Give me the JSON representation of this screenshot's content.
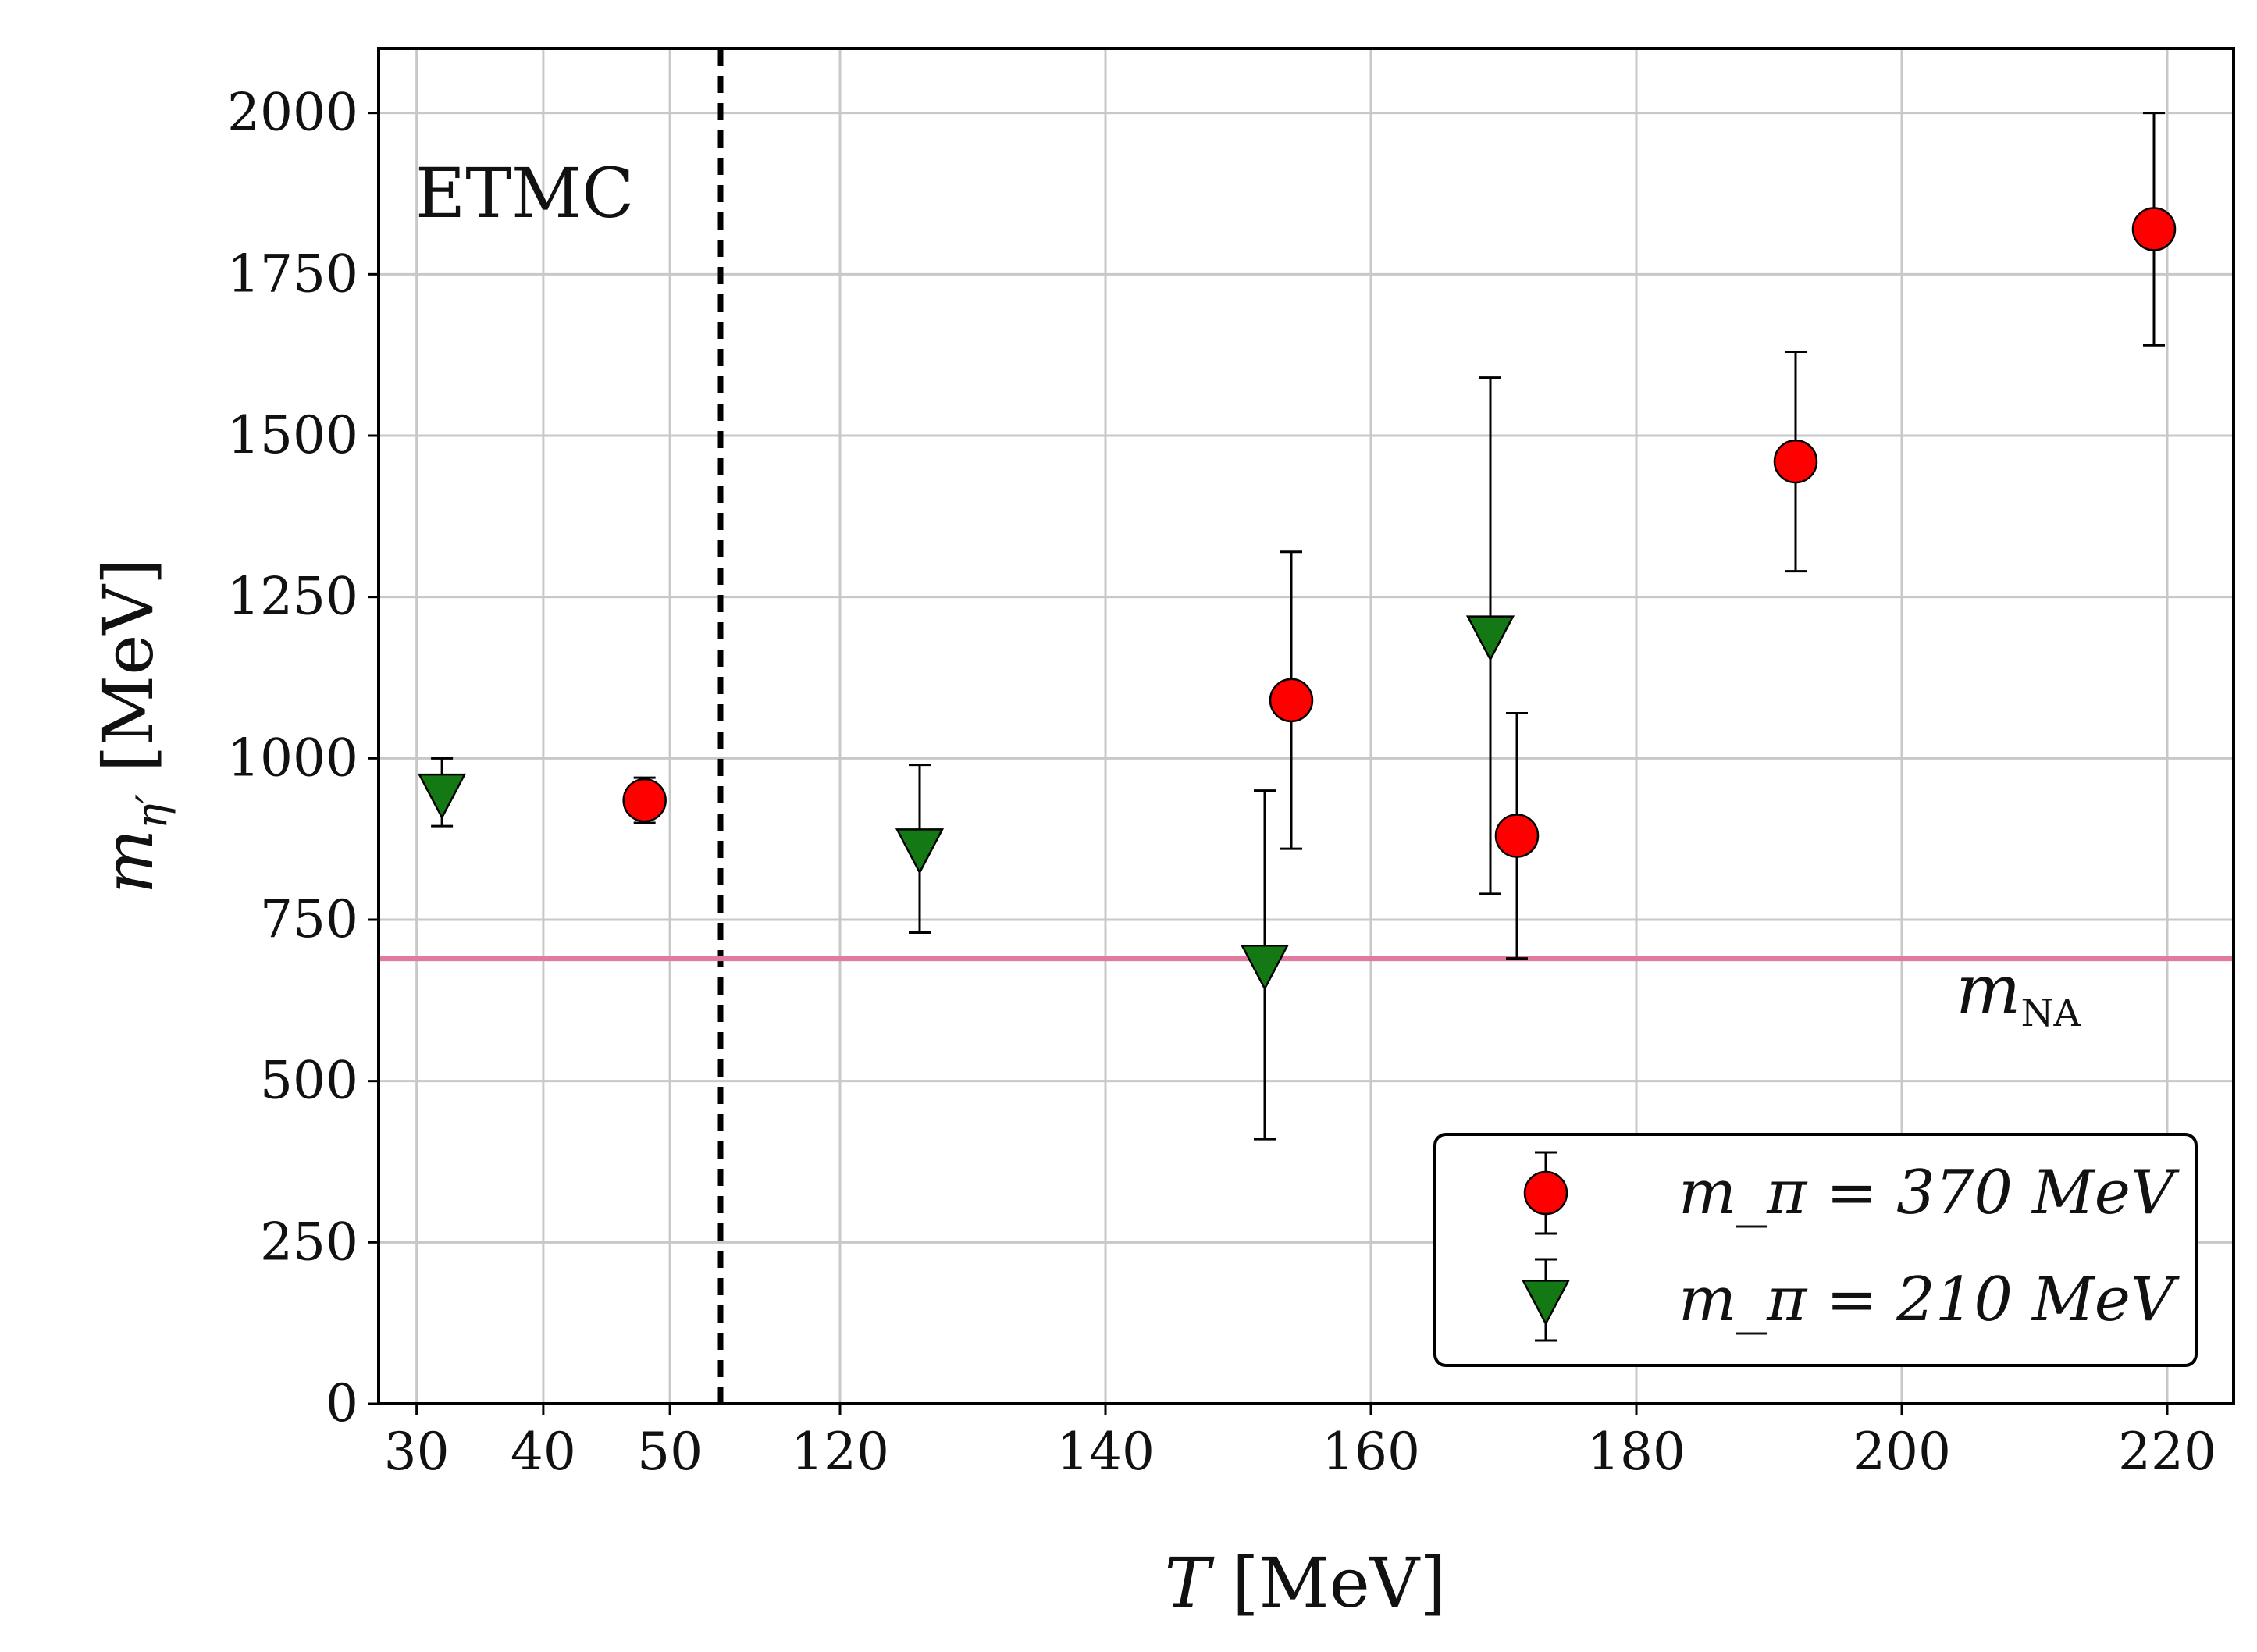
{
  "chart_data": {
    "type": "scatter",
    "title": "",
    "xlabel": "T [MeV]",
    "ylabel": "m_η′ [MeV]",
    "annotation": "ETMC",
    "reference_line": {
      "label": "m_NA",
      "value": 690,
      "color": "#e07aa0"
    },
    "x_break": {
      "left_range": [
        27,
        54
      ],
      "right_range": [
        111,
        225
      ]
    },
    "x_ticks": [
      30,
      40,
      50,
      120,
      140,
      160,
      180,
      200,
      220
    ],
    "ylim": [
      0,
      2100
    ],
    "y_ticks": [
      0,
      250,
      500,
      750,
      1000,
      1250,
      1500,
      1750,
      2000
    ],
    "grid": true,
    "legend_position": "lower-right",
    "series": [
      {
        "name": "m_π = 370 MeV",
        "marker": "circle",
        "color": "#ff0000",
        "points": [
          {
            "x": 48,
            "y": 935,
            "lo": 900,
            "hi": 970
          },
          {
            "x": 154,
            "y": 1090,
            "lo": 860,
            "hi": 1320
          },
          {
            "x": 171,
            "y": 880,
            "lo": 690,
            "hi": 1070
          },
          {
            "x": 192,
            "y": 1460,
            "lo": 1290,
            "hi": 1630
          },
          {
            "x": 219,
            "y": 1820,
            "lo": 1640,
            "hi": 2000
          }
        ]
      },
      {
        "name": "m_π = 210 MeV",
        "marker": "triangle-down",
        "color": "#147814",
        "points": [
          {
            "x": 32,
            "y": 945,
            "lo": 895,
            "hi": 1000
          },
          {
            "x": 126,
            "y": 860,
            "lo": 730,
            "hi": 990
          },
          {
            "x": 152,
            "y": 680,
            "lo": 410,
            "hi": 950
          },
          {
            "x": 169,
            "y": 1190,
            "lo": 790,
            "hi": 1590
          }
        ]
      }
    ]
  }
}
